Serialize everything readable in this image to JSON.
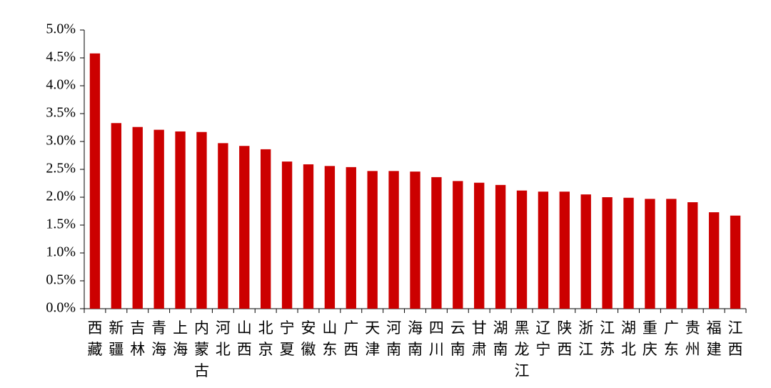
{
  "chart_data": {
    "type": "bar",
    "categories": [
      "西藏",
      "新疆",
      "吉林",
      "青海",
      "上海",
      "内蒙古",
      "河北",
      "山西",
      "北京",
      "宁夏",
      "安徽",
      "山东",
      "广西",
      "天津",
      "河南",
      "海南",
      "四川",
      "云南",
      "甘肃",
      "湖南",
      "黑龙江",
      "辽宁",
      "陕西",
      "浙江",
      "江苏",
      "湖北",
      "重庆",
      "广东",
      "贵州",
      "福建",
      "江西"
    ],
    "values": [
      4.58,
      3.33,
      3.26,
      3.21,
      3.18,
      3.17,
      2.97,
      2.92,
      2.86,
      2.64,
      2.59,
      2.56,
      2.54,
      2.47,
      2.47,
      2.46,
      2.36,
      2.29,
      2.26,
      2.22,
      2.12,
      2.1,
      2.1,
      2.05,
      2.0,
      1.99,
      1.97,
      1.97,
      1.91,
      1.73,
      1.67
    ],
    "color": "#cc0000",
    "ylim": [
      0,
      5
    ],
    "yticks": [
      {
        "value": 0,
        "label": "0.0%"
      },
      {
        "value": 0.5,
        "label": "0.5%"
      },
      {
        "value": 1,
        "label": "1.0%"
      },
      {
        "value": 1.5,
        "label": "1.5%"
      },
      {
        "value": 2,
        "label": "2.0%"
      },
      {
        "value": 2.5,
        "label": "2.5%"
      },
      {
        "value": 3,
        "label": "3.0%"
      },
      {
        "value": 3.5,
        "label": "3.5%"
      },
      {
        "value": 4,
        "label": "4.0%"
      },
      {
        "value": 4.5,
        "label": "4.5%"
      },
      {
        "value": 5,
        "label": "5.0%"
      }
    ],
    "grid": false
  }
}
